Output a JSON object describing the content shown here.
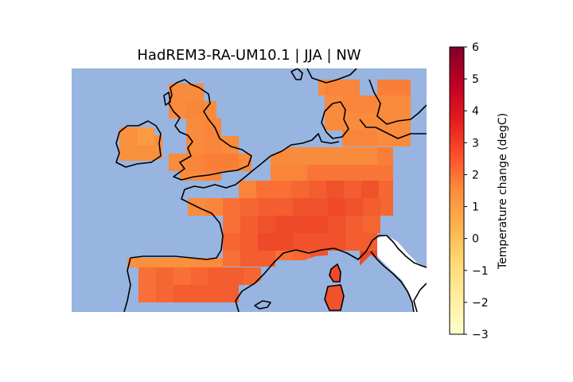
{
  "title": "HadREM3-RA-UM10.1 | JJA | NW",
  "colorbar": {
    "label": "Temperature change (degC)",
    "min": -3,
    "max": 6,
    "ticks": [
      {
        "value": 6,
        "text": "6"
      },
      {
        "value": 5,
        "text": "5"
      },
      {
        "value": 4,
        "text": "4"
      },
      {
        "value": 3,
        "text": "3"
      },
      {
        "value": 2,
        "text": "2"
      },
      {
        "value": 1,
        "text": "1"
      },
      {
        "value": 0,
        "text": "0"
      },
      {
        "value": -1,
        "text": "−1"
      },
      {
        "value": -2,
        "text": "−2"
      },
      {
        "value": -3,
        "text": "−3"
      }
    ],
    "colormap": "YlOrRd",
    "stops": [
      "#ffffcc",
      "#ffeda0",
      "#fed976",
      "#feb24c",
      "#fd8d3c",
      "#fc4e2a",
      "#e31a1c",
      "#bd0026",
      "#800026"
    ]
  },
  "colors": {
    "ocean": "#98b4e0",
    "coast": "#000000"
  }
}
